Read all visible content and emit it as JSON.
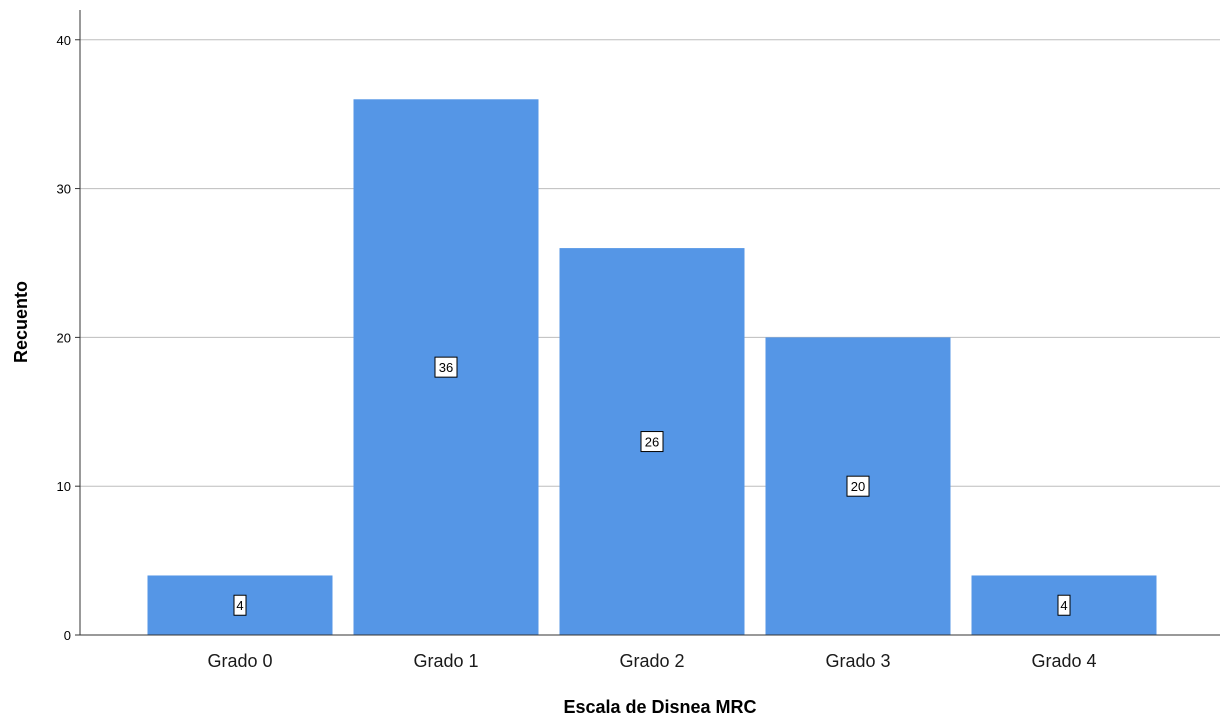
{
  "chart_data": {
    "type": "bar",
    "categories": [
      "Grado 0",
      "Grado 1",
      "Grado 2",
      "Grado 3",
      "Grado 4"
    ],
    "values": [
      4,
      36,
      26,
      20,
      4
    ],
    "data_labels": [
      "4",
      "36",
      "26",
      "20",
      "4"
    ],
    "xlabel": "Escala de Disnea MRC",
    "ylabel": "Recuento",
    "ylim": [
      0,
      42
    ],
    "yticks": [
      0,
      10,
      20,
      30,
      40
    ],
    "grid": true,
    "legend": "none",
    "colors": {
      "bar": "#5596e6",
      "grid": "#bdbdbd",
      "axis": "#333333"
    }
  }
}
